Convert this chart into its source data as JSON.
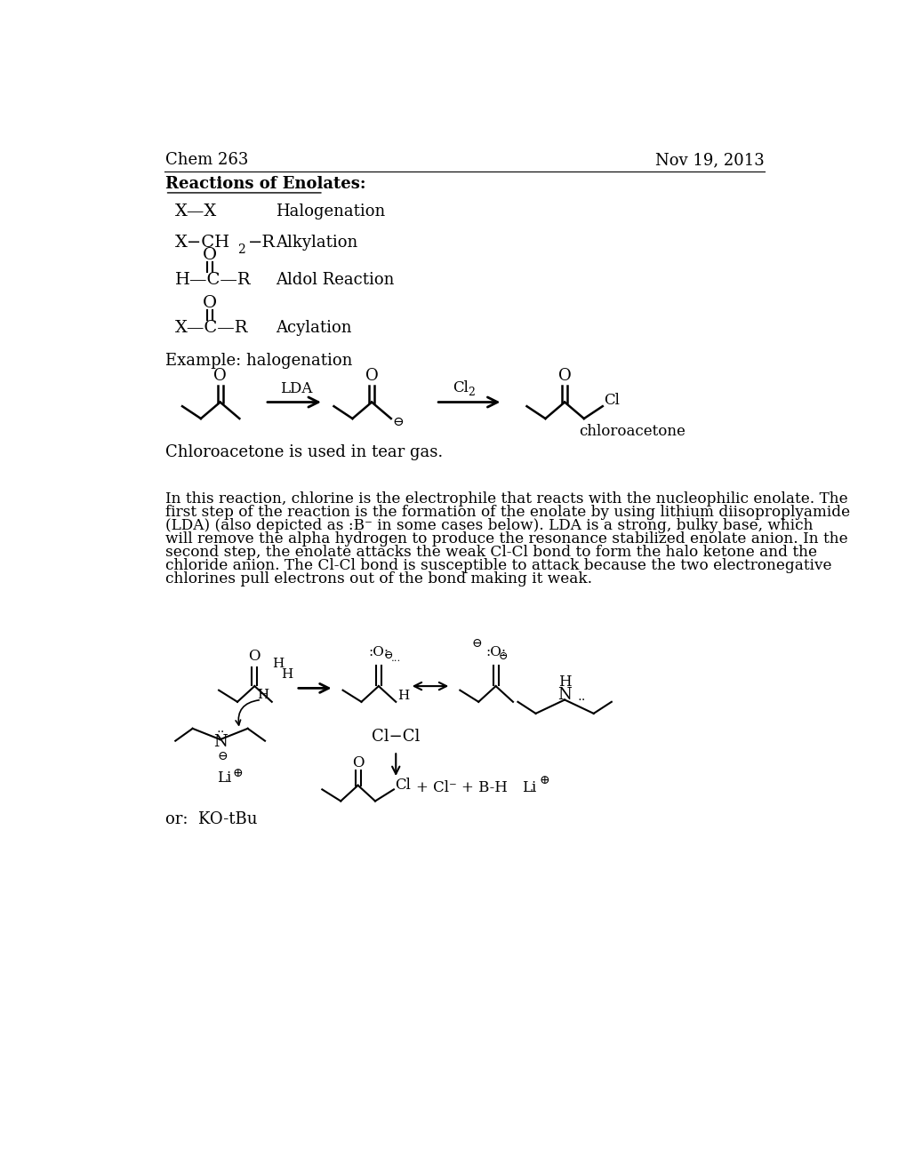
{
  "title_left": "Chem 263",
  "title_right": "Nov 19, 2013",
  "section_title": "Reactions of Enolates:",
  "example_label": "Example: halogenation",
  "paragraph1": "In this reaction, chlorine is the electrophile that reacts with the nucleophilic enolate. The\nfirst step of the reaction is the formation of the enolate by using lithium diisoproplyamide\n(LDA) (also depicted as :B⁻ in some cases below). LDA is a strong, bulky base, which\nwill remove the alpha hydrogen to produce the resonance stabilized enolate anion. In the\nsecond step, the enolate attacks the weak Cl-Cl bond to form the halo ketone and the\nchloride anion. The Cl-Cl bond is susceptible to attack because the two electronegative\nchlorines pull electrons out of the bond making it weak.",
  "chloroacetone_label": "chloroacetone",
  "teargas_label": "Chloroacetone is used in tear gas.",
  "or_label": "or:  KO-tBu",
  "bg_color": "#ffffff",
  "text_color": "#000000"
}
